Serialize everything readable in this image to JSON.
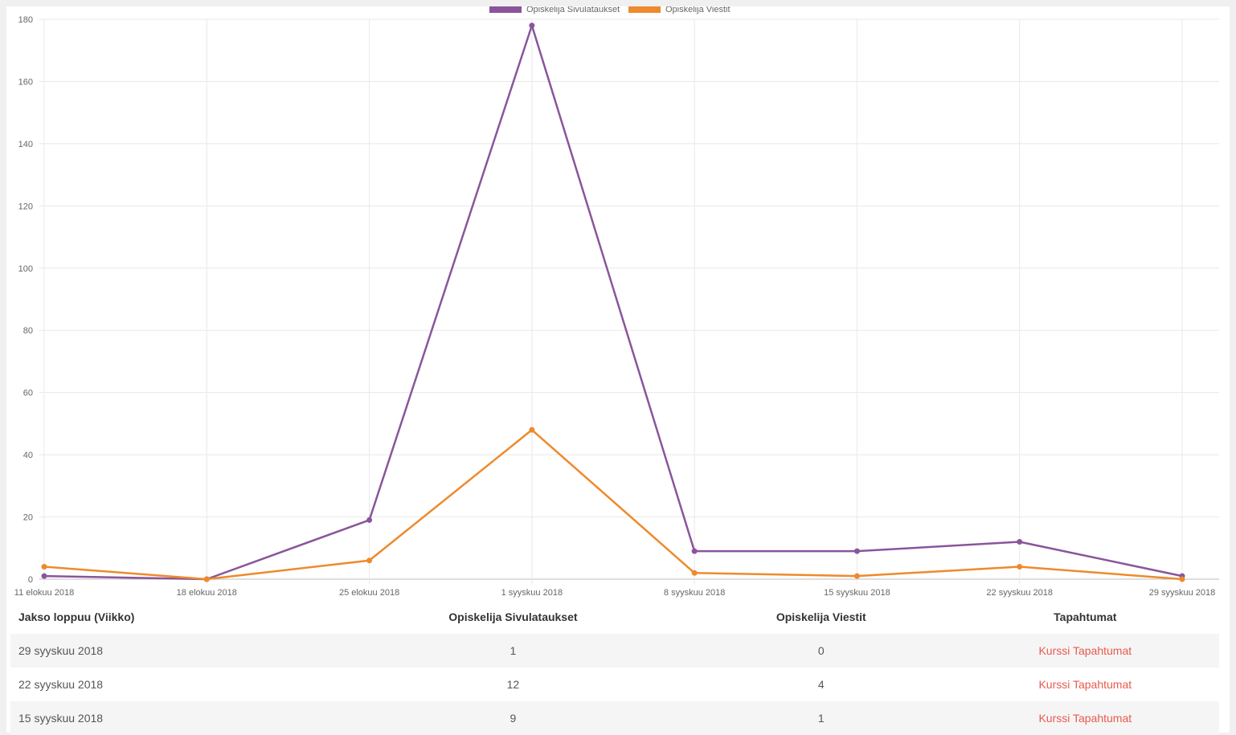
{
  "chart_data": {
    "type": "line",
    "x": [
      "11 elokuu 2018",
      "18 elokuu 2018",
      "25 elokuu 2018",
      "1 syyskuu 2018",
      "8 syyskuu 2018",
      "15 syyskuu 2018",
      "22 syyskuu 2018",
      "29 syyskuu 2018"
    ],
    "series": [
      {
        "name": "Opiskelija Sivulataukset",
        "color": "#8a559a",
        "values": [
          1,
          0,
          19,
          178,
          9,
          9,
          12,
          1
        ]
      },
      {
        "name": "Opiskelija Viestit",
        "color": "#ee8a2c",
        "values": [
          4,
          0,
          6,
          48,
          2,
          1,
          4,
          0
        ]
      }
    ],
    "ylim": [
      0,
      180
    ],
    "yticks": [
      "0",
      "20",
      "40",
      "60",
      "80",
      "100",
      "120",
      "140",
      "160",
      "180"
    ],
    "grid": true,
    "legend": "top-center"
  },
  "table": {
    "headers": [
      "Jakso loppuu (Viikko)",
      "Opiskelija Sivulataukset",
      "Opiskelija Viestit",
      "Tapahtumat"
    ],
    "rows": [
      {
        "week": "29 syyskuu 2018",
        "pages": "1",
        "messages": "0",
        "link": "Kurssi Tapahtumat"
      },
      {
        "week": "22 syyskuu 2018",
        "pages": "12",
        "messages": "4",
        "link": "Kurssi Tapahtumat"
      },
      {
        "week": "15 syyskuu 2018",
        "pages": "9",
        "messages": "1",
        "link": "Kurssi Tapahtumat"
      }
    ]
  }
}
